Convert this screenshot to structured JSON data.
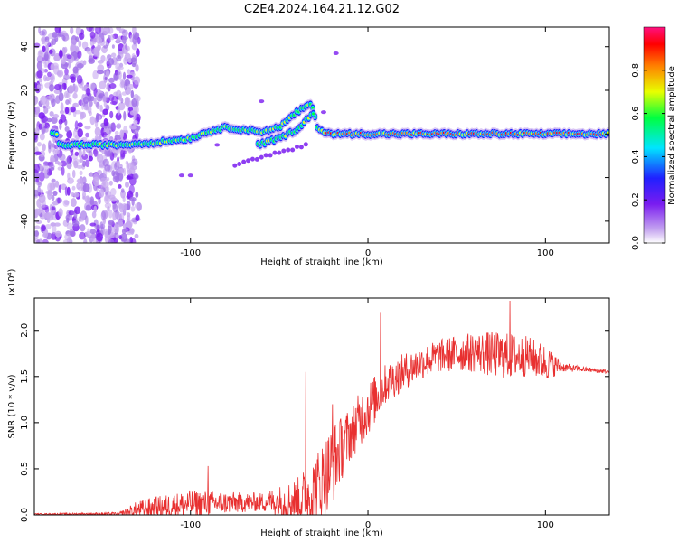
{
  "title": "C2E4.2024.164.21.12.G02",
  "chart_data": [
    {
      "type": "heatmap",
      "xlabel": "Height of straight line (km)",
      "ylabel": "Frequency (Hz)",
      "xlim": [
        -188,
        136
      ],
      "ylim": [
        -50,
        49
      ],
      "xticks": [
        -100,
        0,
        100
      ],
      "yticks": [
        -40,
        -20,
        0,
        20,
        40
      ],
      "colorbar": {
        "label": "Normalized spectral amplitude",
        "range": [
          0,
          1
        ],
        "ticks": [
          0.0,
          0.2,
          0.4,
          0.6,
          0.8
        ]
      },
      "colormap": [
        "#c7a8f0",
        "#7a1cf0",
        "#2020ff",
        "#00e5ff",
        "#00ff40",
        "#e8ff00",
        "#ff8000",
        "#ff0000",
        "#ff1080"
      ],
      "dominant_track": [
        {
          "x": -175,
          "y": -5
        },
        {
          "x": -140,
          "y": -5
        },
        {
          "x": -120,
          "y": -4
        },
        {
          "x": -100,
          "y": -2
        },
        {
          "x": -90,
          "y": 1
        },
        {
          "x": -80,
          "y": 3
        },
        {
          "x": -70,
          "y": 2
        },
        {
          "x": -60,
          "y": 1
        },
        {
          "x": -50,
          "y": 3
        },
        {
          "x": -40,
          "y": 10
        },
        {
          "x": -32,
          "y": 14
        },
        {
          "x": -28,
          "y": 2
        },
        {
          "x": -20,
          "y": 0
        },
        {
          "x": 0,
          "y": 0
        },
        {
          "x": 50,
          "y": 0
        },
        {
          "x": 100,
          "y": 0
        },
        {
          "x": 136,
          "y": 0
        }
      ],
      "secondary_track": [
        {
          "x": -62,
          "y": -5
        },
        {
          "x": -50,
          "y": -2
        },
        {
          "x": -40,
          "y": 2
        },
        {
          "x": -33,
          "y": 8
        },
        {
          "x": -30,
          "y": 10
        }
      ],
      "noise_region_x": [
        -188,
        -135
      ]
    },
    {
      "type": "line",
      "xlabel": "Height of straight line (km)",
      "ylabel": "SNR (10 * v/v)",
      "y_multiplier": "(x10⁴)",
      "xlim": [
        -188,
        136
      ],
      "ylim": [
        0,
        2.35
      ],
      "xticks": [
        -100,
        0,
        100
      ],
      "yticks": [
        0.0,
        0.5,
        1.0,
        1.5,
        2.0
      ],
      "color": "#e83030",
      "envelope": {
        "x": [
          -188,
          -140,
          -130,
          -120,
          -100,
          -80,
          -60,
          -40,
          -30,
          -20,
          -15,
          -10,
          -5,
          0,
          5,
          10,
          20,
          30,
          40,
          50,
          60,
          70,
          80,
          90,
          100,
          110,
          120,
          136
        ],
        "base": [
          0.01,
          0.01,
          0.05,
          0.08,
          0.12,
          0.13,
          0.14,
          0.15,
          0.25,
          0.55,
          0.72,
          0.88,
          1.02,
          1.15,
          1.28,
          1.42,
          1.55,
          1.65,
          1.72,
          1.75,
          1.76,
          1.74,
          1.72,
          1.72,
          1.65,
          1.6,
          1.58,
          1.55
        ],
        "amp": [
          0.005,
          0.02,
          0.1,
          0.12,
          0.15,
          0.12,
          0.1,
          0.25,
          0.4,
          0.45,
          0.35,
          0.3,
          0.3,
          0.3,
          0.25,
          0.22,
          0.2,
          0.18,
          0.18,
          0.2,
          0.22,
          0.25,
          0.25,
          0.22,
          0.2,
          0.05,
          0.03,
          0.02
        ]
      },
      "peaks": [
        {
          "x": 7,
          "y": 2.2
        },
        {
          "x": 80,
          "y": 2.32
        },
        {
          "x": -35,
          "y": 1.55
        },
        {
          "x": -20,
          "y": 1.2
        },
        {
          "x": -90,
          "y": 0.53
        }
      ]
    }
  ]
}
